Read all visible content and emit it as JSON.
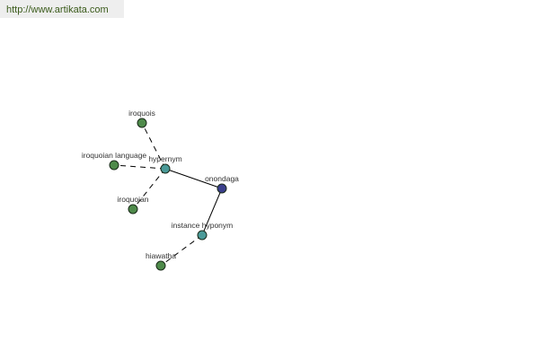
{
  "watermark": {
    "url": "http://www.artikata.com"
  },
  "colors": {
    "word": "#4e8a4a",
    "relation": "#4a9a98",
    "center": "#3b3f8c",
    "edge": "#000000",
    "label": "#333333"
  },
  "graph": {
    "nodes": [
      {
        "id": "onondaga",
        "label": "onondaga",
        "kind": "center"
      },
      {
        "id": "hypernym",
        "label": "hypernym",
        "kind": "relation"
      },
      {
        "id": "instance-hyponym",
        "label": "instance hyponym",
        "kind": "relation"
      },
      {
        "id": "iroquois",
        "label": "iroquois",
        "kind": "word"
      },
      {
        "id": "iroquoian-language",
        "label": "iroquoian language",
        "kind": "word"
      },
      {
        "id": "iroquoian",
        "label": "iroquoian",
        "kind": "word"
      },
      {
        "id": "hiawatha",
        "label": "hiawatha",
        "kind": "word"
      }
    ],
    "edges": [
      {
        "from": "onondaga",
        "to": "hypernym",
        "style": "solid"
      },
      {
        "from": "onondaga",
        "to": "instance-hyponym",
        "style": "solid"
      },
      {
        "from": "hypernym",
        "to": "iroquois",
        "style": "dashed"
      },
      {
        "from": "hypernym",
        "to": "iroquoian-language",
        "style": "dashed"
      },
      {
        "from": "hypernym",
        "to": "iroquoian",
        "style": "dashed"
      },
      {
        "from": "instance-hyponym",
        "to": "hiawatha",
        "style": "dashed"
      }
    ]
  }
}
